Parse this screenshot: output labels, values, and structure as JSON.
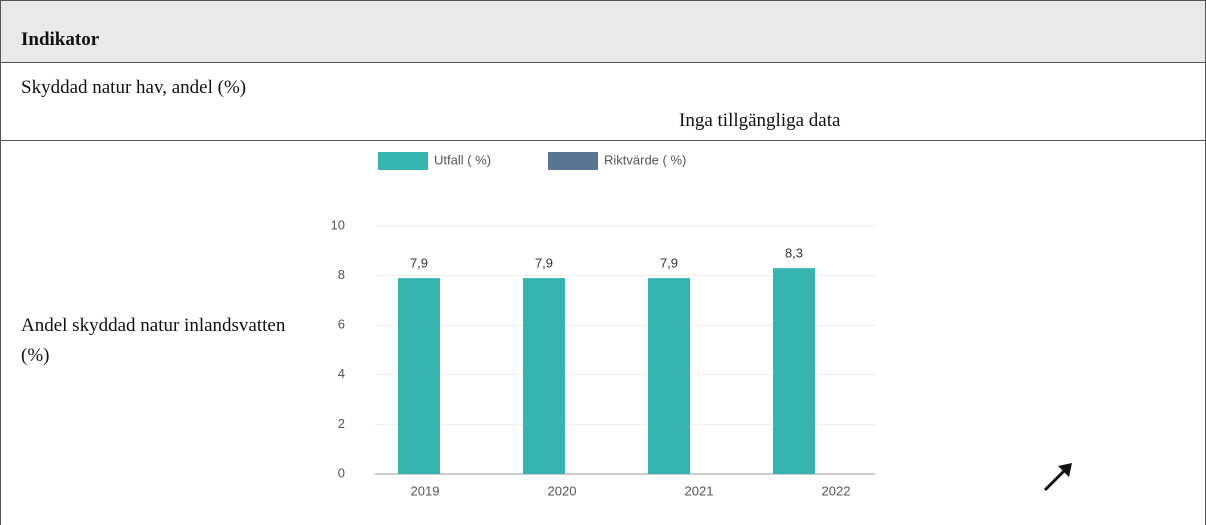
{
  "table": {
    "header": "Indikator",
    "rows": [
      {
        "label": "Skyddad natur hav, andel (%)",
        "value": "Inga tillgängliga data"
      },
      {
        "label": "Andel skyddad natur inlandsvatten (%)",
        "chart": {
          "type": "bar",
          "categories": [
            "2019",
            "2020",
            "2021",
            "2022"
          ],
          "series": [
            {
              "name": "Utfall ( %)",
              "color": "#36b5b0",
              "values": [
                7.9,
                7.9,
                7.9,
                8.3
              ],
              "value_labels": [
                "7,9",
                "7,9",
                "7,9",
                "8,3"
              ]
            },
            {
              "name": "Riktvärde ( %)",
              "color": "#5a7592",
              "values": [
                null,
                null,
                null,
                null
              ]
            }
          ],
          "ylim": [
            0,
            10
          ],
          "yticks": [
            0,
            2,
            4,
            6,
            8,
            10
          ],
          "grid": true
        }
      }
    ]
  }
}
